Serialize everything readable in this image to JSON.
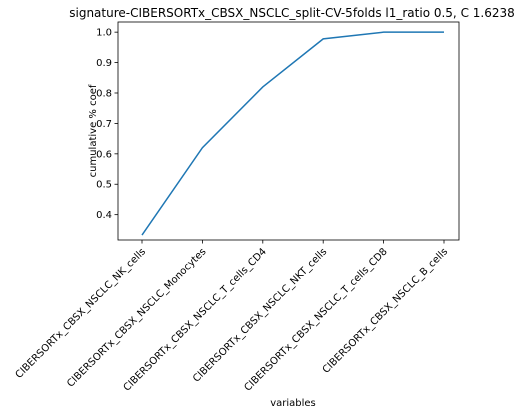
{
  "chart_data": {
    "type": "line",
    "title": "signature-CIBERSORTx_CBSX_NSCLC_split-CV-5folds l1_ratio 0.5, C 1.6238",
    "xlabel": "variables",
    "ylabel": "cumulative % coef",
    "categories": [
      "CIBERSORTx_CBSX_NSCLC_NK_cells",
      "CIBERSORTx_CBSX_NSCLC_Monocytes",
      "CIBERSORTx_CBSX_NSCLC_T_cells_CD4",
      "CIBERSORTx_CBSX_NSCLC_NKT_cells",
      "CIBERSORTx_CBSX_NSCLC_T_cells_CD8",
      "CIBERSORTx_CBSX_NSCLC_B_cells"
    ],
    "series": [
      {
        "values": [
          0.333,
          0.62,
          0.82,
          0.978,
          1.0,
          1.0
        ]
      }
    ],
    "yticks": [
      0.4,
      0.5,
      0.6,
      0.7,
      0.8,
      0.9,
      1.0
    ],
    "ytick_labels": [
      "0.4",
      "0.5",
      "0.6",
      "0.7",
      "0.8",
      "0.9",
      "1.0"
    ],
    "ylim": [
      0.3167,
      1.0334
    ],
    "grid": false,
    "line_color": "#1f77b4"
  }
}
